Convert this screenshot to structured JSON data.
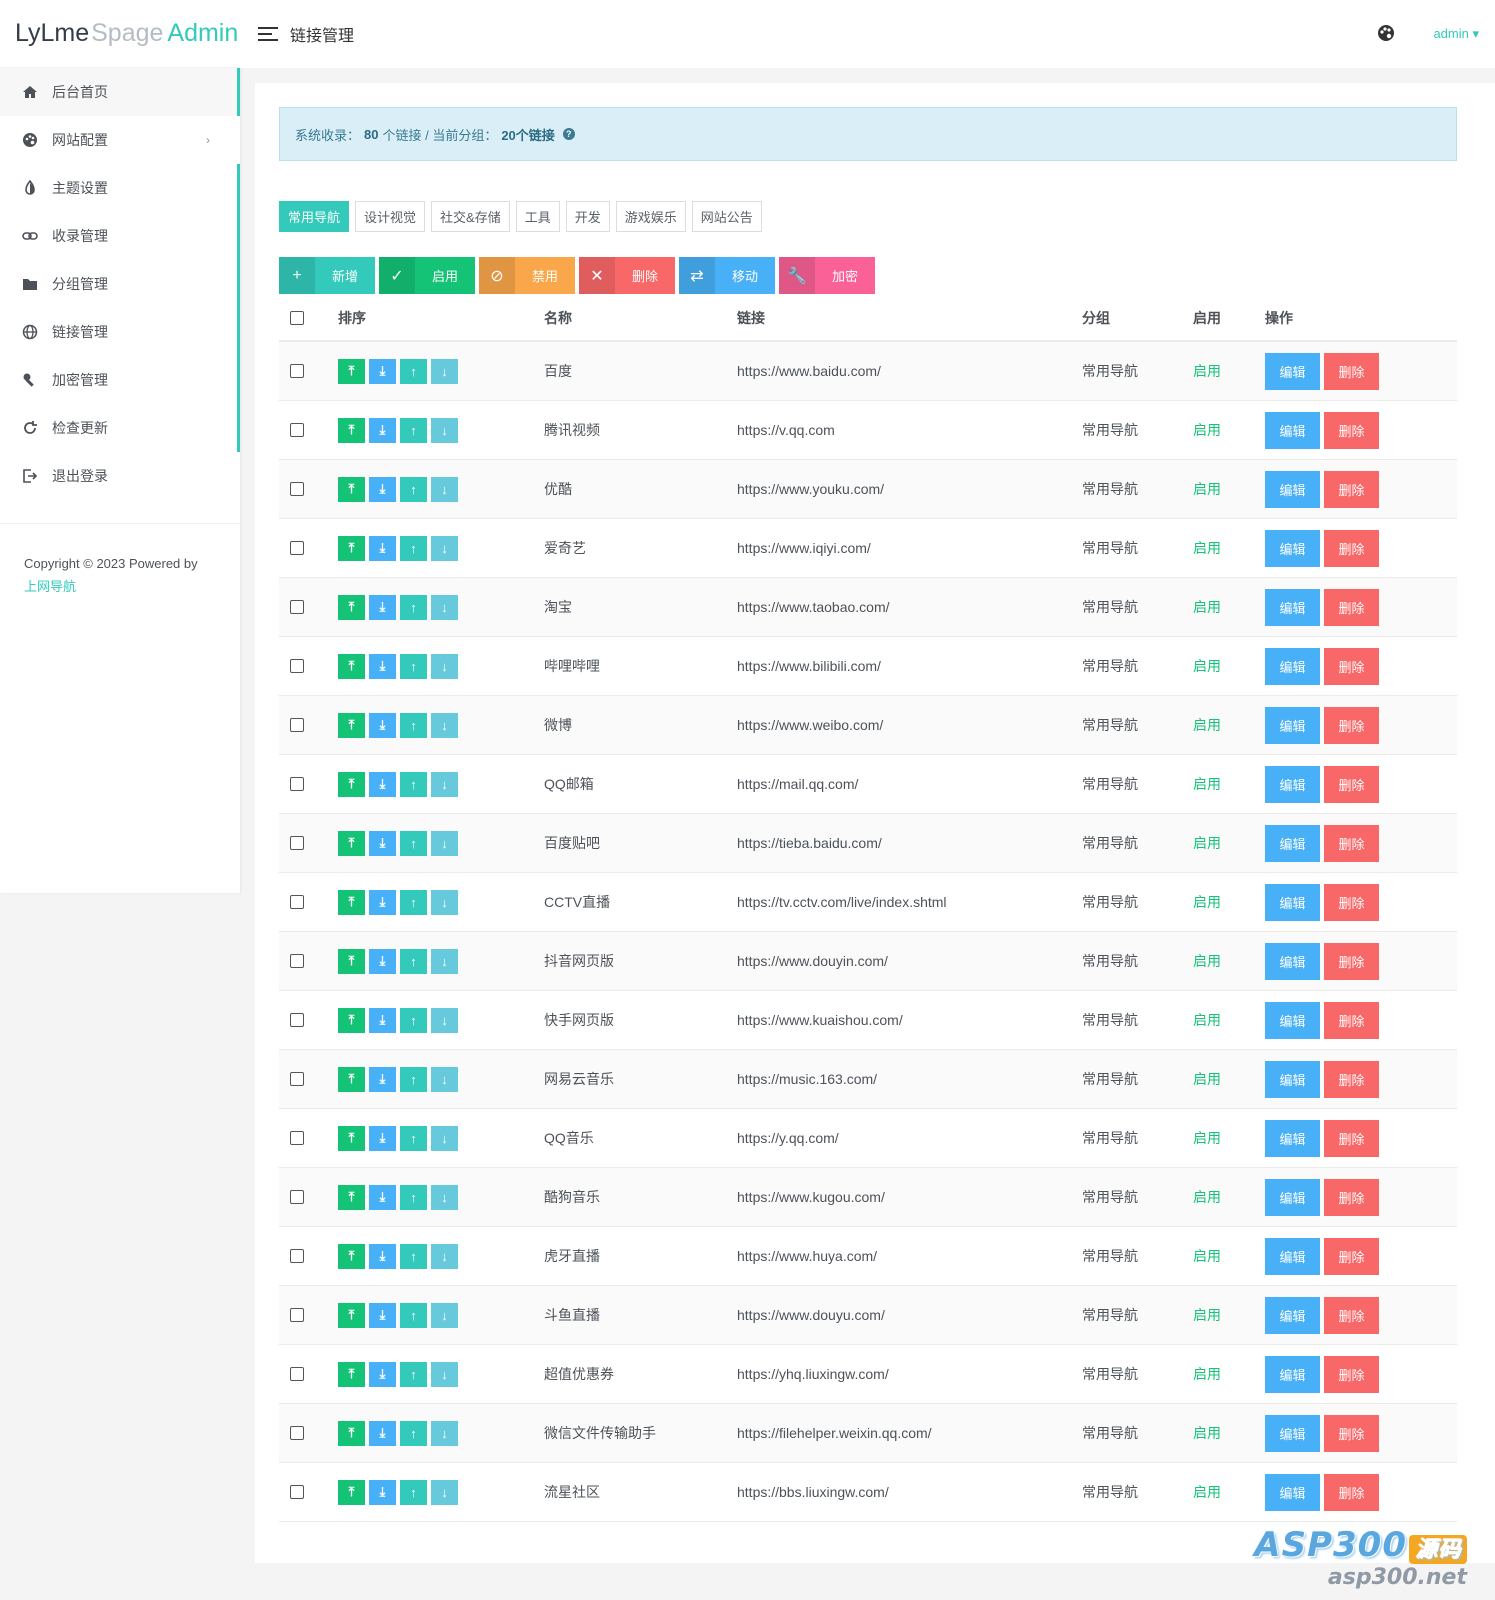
{
  "brand": {
    "part1": "LyLme",
    "part2": "Spage",
    "part3": "Admin"
  },
  "sidebar": {
    "items": [
      {
        "label": "后台首页",
        "icon": "home-icon"
      },
      {
        "label": "网站配置",
        "icon": "palette-icon",
        "caret": "›"
      },
      {
        "label": "主题设置",
        "icon": "contrast-icon"
      },
      {
        "label": "收录管理",
        "icon": "link-icon"
      },
      {
        "label": "分组管理",
        "icon": "folder-icon"
      },
      {
        "label": "链接管理",
        "icon": "globe-icon"
      },
      {
        "label": "加密管理",
        "icon": "wrench-icon"
      },
      {
        "label": "检查更新",
        "icon": "refresh-icon"
      },
      {
        "label": "退出登录",
        "icon": "logout-icon"
      }
    ],
    "footer": {
      "copyright": "Copyright © 2023 Powered by",
      "link": "上网导航"
    }
  },
  "header": {
    "title": "链接管理",
    "user": "admin"
  },
  "alert": {
    "prefix": "系统收录：",
    "total": "80",
    "mid": "个链接 / 当前分组：",
    "group_count": "20个链接",
    "help": "?"
  },
  "tabs": [
    "常用导航",
    "设计视觉",
    "社交&存储",
    "工具",
    "开发",
    "游戏娱乐",
    "网站公告"
  ],
  "toolbar": [
    {
      "label": "新增",
      "icon": "+",
      "cls": "b-add"
    },
    {
      "label": "启用",
      "icon": "✓",
      "cls": "b-on"
    },
    {
      "label": "禁用",
      "icon": "⊘",
      "cls": "b-off"
    },
    {
      "label": "删除",
      "icon": "✕",
      "cls": "b-del"
    },
    {
      "label": "移动",
      "icon": "⇄",
      "cls": "b-move"
    },
    {
      "label": "加密",
      "icon": "🔧",
      "cls": "b-enc"
    }
  ],
  "table": {
    "headers": {
      "sort": "排序",
      "name": "名称",
      "url": "链接",
      "group": "分组",
      "enabled": "启用",
      "ops": "操作"
    },
    "sort_icons": [
      "⤒",
      "⤓",
      "↑",
      "↓"
    ],
    "edit_label": "编辑",
    "delete_label": "删除",
    "rows": [
      {
        "name": "百度",
        "url": "https://www.baidu.com/",
        "group": "常用导航",
        "enabled": "启用"
      },
      {
        "name": "腾讯视频",
        "url": "https://v.qq.com",
        "group": "常用导航",
        "enabled": "启用"
      },
      {
        "name": "优酷",
        "url": "https://www.youku.com/",
        "group": "常用导航",
        "enabled": "启用"
      },
      {
        "name": "爱奇艺",
        "url": "https://www.iqiyi.com/",
        "group": "常用导航",
        "enabled": "启用"
      },
      {
        "name": "淘宝",
        "url": "https://www.taobao.com/",
        "group": "常用导航",
        "enabled": "启用"
      },
      {
        "name": "哔哩哔哩",
        "url": "https://www.bilibili.com/",
        "group": "常用导航",
        "enabled": "启用"
      },
      {
        "name": "微博",
        "url": "https://www.weibo.com/",
        "group": "常用导航",
        "enabled": "启用"
      },
      {
        "name": "QQ邮箱",
        "url": "https://mail.qq.com/",
        "group": "常用导航",
        "enabled": "启用"
      },
      {
        "name": "百度贴吧",
        "url": "https://tieba.baidu.com/",
        "group": "常用导航",
        "enabled": "启用"
      },
      {
        "name": "CCTV直播",
        "url": "https://tv.cctv.com/live/index.shtml",
        "group": "常用导航",
        "enabled": "启用"
      },
      {
        "name": "抖音网页版",
        "url": "https://www.douyin.com/",
        "group": "常用导航",
        "enabled": "启用"
      },
      {
        "name": "快手网页版",
        "url": "https://www.kuaishou.com/",
        "group": "常用导航",
        "enabled": "启用"
      },
      {
        "name": "网易云音乐",
        "url": "https://music.163.com/",
        "group": "常用导航",
        "enabled": "启用"
      },
      {
        "name": "QQ音乐",
        "url": "https://y.qq.com/",
        "group": "常用导航",
        "enabled": "启用"
      },
      {
        "name": "酷狗音乐",
        "url": "https://www.kugou.com/",
        "group": "常用导航",
        "enabled": "启用"
      },
      {
        "name": "虎牙直播",
        "url": "https://www.huya.com/",
        "group": "常用导航",
        "enabled": "启用"
      },
      {
        "name": "斗鱼直播",
        "url": "https://www.douyu.com/",
        "group": "常用导航",
        "enabled": "启用"
      },
      {
        "name": "超值优惠券",
        "url": "https://yhq.liuxingw.com/",
        "group": "常用导航",
        "enabled": "启用"
      },
      {
        "name": "微信文件传输助手",
        "url": "https://filehelper.weixin.qq.com/",
        "group": "常用导航",
        "enabled": "启用"
      },
      {
        "name": "流星社区",
        "url": "https://bbs.liuxingw.com/",
        "group": "常用导航",
        "enabled": "启用"
      }
    ]
  },
  "watermark": {
    "line1": "ASP300",
    "badge": "源码",
    "line2": "asp300.net"
  }
}
